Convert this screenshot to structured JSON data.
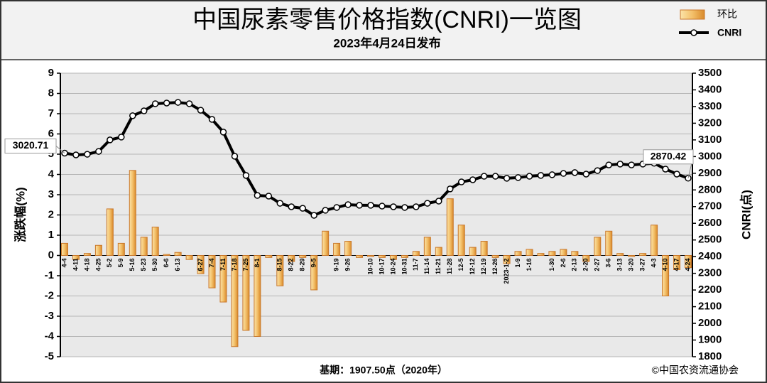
{
  "chart_data": {
    "type": "bar",
    "title": "中国尿素零售价格指数(CNRI)一览图",
    "subtitle": "2023年4月24日发布",
    "y_label": "涨跌幅(%)",
    "y2_label": "CNRI(点)",
    "footnote": "基期：1907.50点（2020年）",
    "source": "©中国农资流通协会",
    "categories": [
      "4-4",
      "4-11",
      "4-18",
      "4-25",
      "5-2",
      "5-9",
      "5-16",
      "5-23",
      "5-30",
      "6-6",
      "6-13",
      null,
      "6-27",
      "7-4",
      "7-11",
      "7-18",
      "7-25",
      "8-1",
      null,
      "8-15",
      "8-22",
      "8-29",
      "9-5",
      null,
      "9-19",
      "9-26",
      null,
      "10-10",
      "10-17",
      "10-24",
      "10-31",
      "11-7",
      "11-14",
      "11-21",
      "11-28",
      "12-5",
      "12-12",
      "12-19",
      "12-26",
      "2023-1-2",
      "1-9",
      "1-16",
      null,
      "1-30",
      "2-6",
      "2-13",
      "2-20",
      "2-27",
      "3-6",
      "3-13",
      "3-20",
      "3-27",
      "4-3",
      "4-10",
      "4-17",
      "4-24"
    ],
    "series": [
      {
        "name": "环比",
        "type": "bar",
        "color": "#f3c06a",
        "axis": "y",
        "values": [
          0.6,
          -0.2,
          0.1,
          0.5,
          2.3,
          0.6,
          4.2,
          0.9,
          1.4,
          0.05,
          0.15,
          -0.2,
          -0.9,
          -1.6,
          -2.3,
          -4.5,
          -3.7,
          -4.0,
          -0.1,
          -1.5,
          -0.3,
          -0.1,
          -1.7,
          1.2,
          0.6,
          0.7,
          -0.1,
          -0.05,
          -0.1,
          -0.2,
          -0.1,
          0.2,
          0.9,
          0.4,
          2.8,
          1.5,
          0.4,
          0.7,
          -0.1,
          -0.4,
          0.2,
          0.3,
          0.1,
          0.2,
          0.3,
          0.2,
          -0.3,
          0.9,
          1.2,
          0.1,
          -0.05,
          0.1,
          1.5,
          -2.0,
          -0.7,
          -0.6
        ]
      },
      {
        "name": "CNRI",
        "type": "line",
        "color": "#000000",
        "axis": "y2",
        "values": [
          3020.71,
          3010,
          3014,
          3031,
          3100,
          3117,
          3245,
          3274,
          3317,
          3321,
          3325,
          3317,
          3278,
          3223,
          3147,
          3002,
          2887,
          2767,
          2763,
          2720,
          2699,
          2690,
          2648,
          2678,
          2695,
          2712,
          2708,
          2708,
          2703,
          2699,
          2695,
          2699,
          2720,
          2733,
          2806,
          2848,
          2861,
          2882,
          2882,
          2870,
          2874,
          2882,
          2887,
          2891,
          2899,
          2904,
          2895,
          2916,
          2950,
          2955,
          2950,
          2955,
          2960,
          2925,
          2895,
          2870.42
        ]
      }
    ],
    "ylim": [
      -5,
      9
    ],
    "yticks": [
      -5,
      -4,
      -3,
      -2,
      -1,
      0,
      1,
      2,
      3,
      4,
      5,
      6,
      7,
      8,
      9
    ],
    "y2lim": [
      1800,
      3500
    ],
    "y2ticks": [
      1800,
      1900,
      2000,
      2100,
      2200,
      2300,
      2400,
      2500,
      2600,
      2700,
      2800,
      2900,
      3000,
      3100,
      3200,
      3300,
      3400,
      3500
    ],
    "grid": true,
    "legend": "top-right"
  }
}
